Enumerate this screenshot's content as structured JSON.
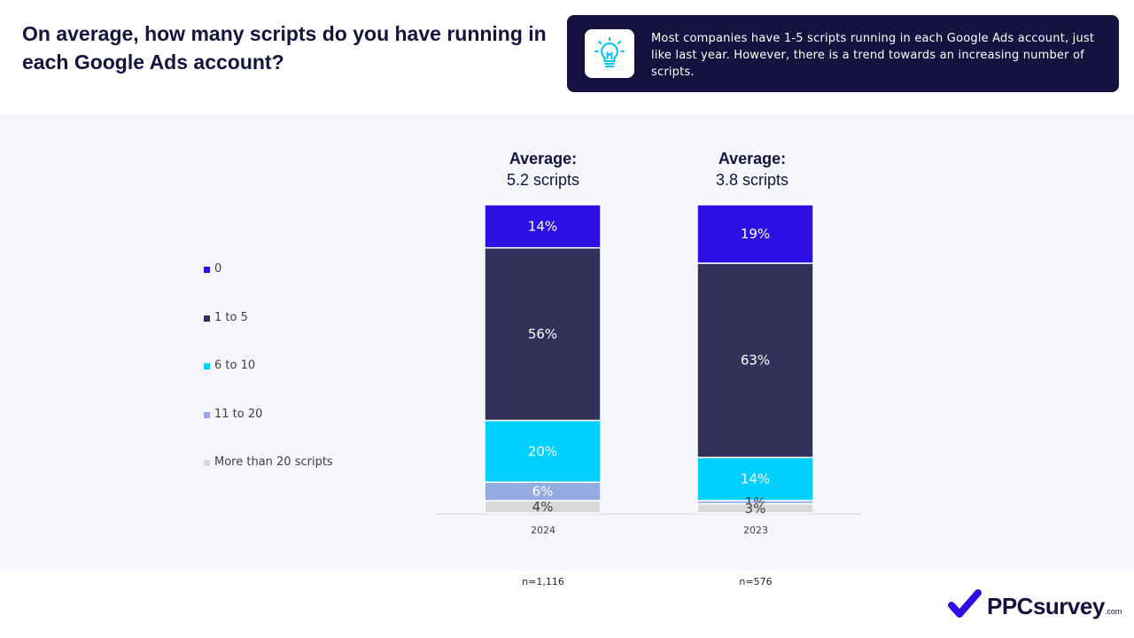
{
  "title": "On average, how many scripts do you have running in each Google Ads account?",
  "insight": {
    "icon": "lightbulb-icon",
    "text": "Most companies have 1-5 scripts running in each Google Ads account, just like last year. However, there is a trend towards an increasing number of scripts."
  },
  "legend": [
    {
      "label": "0",
      "color": "#2f10e4"
    },
    {
      "label": "1 to 5",
      "color": "#31315c"
    },
    {
      "label": "6 to 10",
      "color": "#00cfff"
    },
    {
      "label": "11 to 20",
      "color": "#93abe0"
    },
    {
      "label": "More than 20 scripts",
      "color": "#d9d9d9"
    }
  ],
  "chart_data": {
    "type": "bar",
    "stacked": true,
    "categories": [
      "2024",
      "2023"
    ],
    "series": [
      {
        "name": "0",
        "values": [
          14,
          19
        ],
        "labels": [
          "14%",
          "19%"
        ]
      },
      {
        "name": "1 to 5",
        "values": [
          56,
          63
        ],
        "labels": [
          "56%",
          "63%"
        ]
      },
      {
        "name": "6 to 10",
        "values": [
          20,
          14
        ],
        "labels": [
          "20%",
          "14%"
        ]
      },
      {
        "name": "11 to 20",
        "values": [
          6,
          1
        ],
        "labels": [
          "6%",
          "1%"
        ]
      },
      {
        "name": "More than 20 scripts",
        "values": [
          4,
          3
        ],
        "labels": [
          "4%",
          "3%"
        ]
      }
    ],
    "averages": [
      {
        "heading": "Average:",
        "value": "5.2 scripts"
      },
      {
        "heading": "Average:",
        "value": "3.8 scripts"
      }
    ],
    "sample_sizes": [
      "n=1,116",
      "n=576"
    ],
    "legend_position": "left",
    "grid": false
  },
  "branding": {
    "logo_name": "PPCsurvey",
    "logo_suffix": ".com",
    "logo_color": "#2f10e4"
  }
}
